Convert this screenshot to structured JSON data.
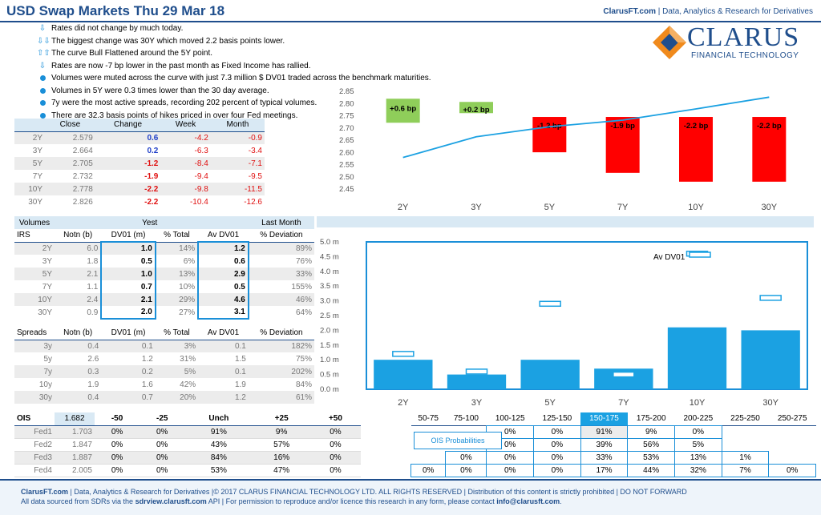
{
  "header": {
    "title": "USD Swap Markets Thu 29 Mar 18",
    "site": "ClarusFT.com",
    "tagline": "Data, Analytics & Research for Derivatives"
  },
  "logo": {
    "word": "CLARUS",
    "sub": "FINANCIAL TECHNOLOGY"
  },
  "bullets": [
    {
      "icon": "arrow-down",
      "text": "Rates did not change by much today."
    },
    {
      "icon": "double-arrow-down",
      "text": "The biggest change was 30Y which moved 2.2 basis points lower."
    },
    {
      "icon": "double-arrow-up",
      "text": "The curve Bull Flattened around the 5Y point."
    },
    {
      "icon": "arrow-down",
      "text": "Rates are now -7 bp lower in the past month as Fixed Income has rallied."
    },
    {
      "icon": "dot",
      "text": "Volumes were muted across the curve with just 7.3 million $ DV01 traded across the benchmark maturities."
    },
    {
      "icon": "dot",
      "text": "Volumes in 5Y were 0.3 times lower than the 30 day average."
    },
    {
      "icon": "dot",
      "text": "7y were the most active spreads, recording 202 percent of typical volumes."
    },
    {
      "icon": "dot",
      "text": "There are 32.3 basis points of hikes priced in over four Fed meetings."
    }
  ],
  "rates": {
    "headers": [
      "Close",
      "Change",
      "Week",
      "Month"
    ],
    "rows": [
      {
        "tenor": "2Y",
        "close": "2.579",
        "change": "0.6",
        "week": "-4.2",
        "month": "-0.9"
      },
      {
        "tenor": "3Y",
        "close": "2.664",
        "change": "0.2",
        "week": "-6.3",
        "month": "-3.4"
      },
      {
        "tenor": "5Y",
        "close": "2.705",
        "change": "-1.2",
        "week": "-8.4",
        "month": "-7.1"
      },
      {
        "tenor": "7Y",
        "close": "2.732",
        "change": "-1.9",
        "week": "-9.4",
        "month": "-9.5"
      },
      {
        "tenor": "10Y",
        "close": "2.778",
        "change": "-2.2",
        "week": "-9.8",
        "month": "-11.5"
      },
      {
        "tenor": "30Y",
        "close": "2.826",
        "change": "-2.2",
        "week": "-10.4",
        "month": "-12.6"
      }
    ]
  },
  "volumes": {
    "group_volumes": "Volumes",
    "group_yest": "Yest",
    "group_month": "Last Month",
    "label": "IRS",
    "headers": [
      "Notn (b)",
      "DV01 (m)",
      "% Total",
      "Av DV01",
      "% Deviation"
    ],
    "rows": [
      {
        "tenor": "2Y",
        "notn": "6.0",
        "dv01": "1.0",
        "pct": "14%",
        "av": "1.2",
        "dev": "89%"
      },
      {
        "tenor": "3Y",
        "notn": "1.8",
        "dv01": "0.5",
        "pct": "6%",
        "av": "0.6",
        "dev": "76%"
      },
      {
        "tenor": "5Y",
        "notn": "2.1",
        "dv01": "1.0",
        "pct": "13%",
        "av": "2.9",
        "dev": "33%"
      },
      {
        "tenor": "7Y",
        "notn": "1.1",
        "dv01": "0.7",
        "pct": "10%",
        "av": "0.5",
        "dev": "155%"
      },
      {
        "tenor": "10Y",
        "notn": "2.4",
        "dv01": "2.1",
        "pct": "29%",
        "av": "4.6",
        "dev": "46%"
      },
      {
        "tenor": "30Y",
        "notn": "0.9",
        "dv01": "2.0",
        "pct": "27%",
        "av": "3.1",
        "dev": "64%"
      }
    ]
  },
  "spreads": {
    "label": "Spreads",
    "headers": [
      "Notn (b)",
      "DV01 (m)",
      "% Total",
      "Av DV01",
      "% Deviation"
    ],
    "rows": [
      {
        "tenor": "3y",
        "notn": "0.4",
        "dv01": "0.1",
        "pct": "3%",
        "av": "0.1",
        "dev": "182%"
      },
      {
        "tenor": "5y",
        "notn": "2.6",
        "dv01": "1.2",
        "pct": "31%",
        "av": "1.5",
        "dev": "75%"
      },
      {
        "tenor": "7y",
        "notn": "0.3",
        "dv01": "0.2",
        "pct": "5%",
        "av": "0.1",
        "dev": "202%"
      },
      {
        "tenor": "10y",
        "notn": "1.9",
        "dv01": "1.6",
        "pct": "42%",
        "av": "1.9",
        "dev": "84%"
      },
      {
        "tenor": "30y",
        "notn": "0.4",
        "dv01": "0.7",
        "pct": "20%",
        "av": "1.2",
        "dev": "61%"
      }
    ]
  },
  "ois": {
    "label": "OIS",
    "spot": "1.682",
    "headers": [
      "-50",
      "-25",
      "Unch",
      "+25",
      "+50"
    ],
    "rows": [
      {
        "name": "Fed1",
        "rate": "1.703",
        "v": [
          "0%",
          "0%",
          "91%",
          "9%",
          "0%"
        ]
      },
      {
        "name": "Fed2",
        "rate": "1.847",
        "v": [
          "0%",
          "0%",
          "43%",
          "57%",
          "0%"
        ]
      },
      {
        "name": "Fed3",
        "rate": "1.887",
        "v": [
          "0%",
          "0%",
          "84%",
          "16%",
          "0%"
        ]
      },
      {
        "name": "Fed4",
        "rate": "2.005",
        "v": [
          "0%",
          "0%",
          "53%",
          "47%",
          "0%"
        ]
      }
    ]
  },
  "probs": {
    "title": "OIS Probabilities",
    "headers": [
      "50-75",
      "75-100",
      "100-125",
      "125-150",
      "150-175",
      "175-200",
      "200-225",
      "225-250",
      "250-275"
    ],
    "rows": [
      [
        "",
        "",
        "0%",
        "0%",
        "91%",
        "9%",
        "0%",
        "",
        ""
      ],
      [
        "",
        "",
        "0%",
        "0%",
        "39%",
        "56%",
        "5%",
        "",
        ""
      ],
      [
        "",
        "0%",
        "0%",
        "0%",
        "33%",
        "53%",
        "13%",
        "1%",
        ""
      ],
      [
        "0%",
        "0%",
        "0%",
        "0%",
        "17%",
        "44%",
        "32%",
        "7%",
        "0%"
      ]
    ]
  },
  "chart_data": [
    {
      "type": "bar",
      "categories": [
        "2Y",
        "3Y",
        "5Y",
        "7Y",
        "10Y",
        "30Y"
      ],
      "series": [
        {
          "type": "line",
          "values": [
            2.579,
            2.664,
            2.705,
            2.732,
            2.778,
            2.826
          ]
        },
        {
          "type": "bar",
          "values": [
            0.6,
            0.2,
            -1.2,
            -1.9,
            -2.2,
            -2.2
          ]
        }
      ],
      "bar_labels": [
        "+0.6 bp",
        "+0.2 bp",
        "-1.2 bp",
        "-1.9 bp",
        "-2.2 bp",
        "-2.2 bp"
      ],
      "ylim": [
        2.45,
        2.85
      ],
      "yticks": [
        "2.45",
        "2.50",
        "2.55",
        "2.60",
        "2.65",
        "2.70",
        "2.75",
        "2.80",
        "2.85"
      ],
      "colors": {
        "line": "#1ba1e2",
        "up": "#8fce5a",
        "down": "#ff0000"
      }
    },
    {
      "type": "bar",
      "categories": [
        "2Y",
        "3Y",
        "5Y",
        "7Y",
        "10Y",
        "30Y"
      ],
      "series": [
        {
          "type": "bar",
          "values": [
            1.0,
            0.5,
            1.0,
            0.7,
            2.1,
            2.0
          ]
        },
        {
          "name": "Av DV01",
          "type": "marker",
          "values": [
            1.2,
            0.6,
            2.9,
            0.5,
            4.6,
            3.1
          ]
        }
      ],
      "legend": "Av DV01",
      "ylim": [
        0,
        5
      ],
      "yticks": [
        "0.0 m",
        "0.5 m",
        "1.0 m",
        "1.5 m",
        "2.0 m",
        "2.5 m",
        "3.0 m",
        "3.5 m",
        "4.0 m",
        "4.5 m",
        "5.0 m"
      ],
      "colors": {
        "bar": "#1ba1e2"
      }
    }
  ],
  "footer": {
    "line1_site": "ClarusFT.com",
    "line1_rest": " | Data, Analytics & Research for Derivatives  |© 2017 CLARUS FINANCIAL TECHNOLOGY LTD. ALL RIGHTS RESERVED | Distribution of this content  is strictly prohibited | DO NOT FORWARD",
    "line2_a": "All data sourced from SDRs via the ",
    "line2_link": "sdrview.clarusft.com",
    "line2_b": " API | For permission to reproduce and/or licence this research in any form, please contact ",
    "line2_email": "info@clarusft.com",
    "line2_end": "."
  }
}
